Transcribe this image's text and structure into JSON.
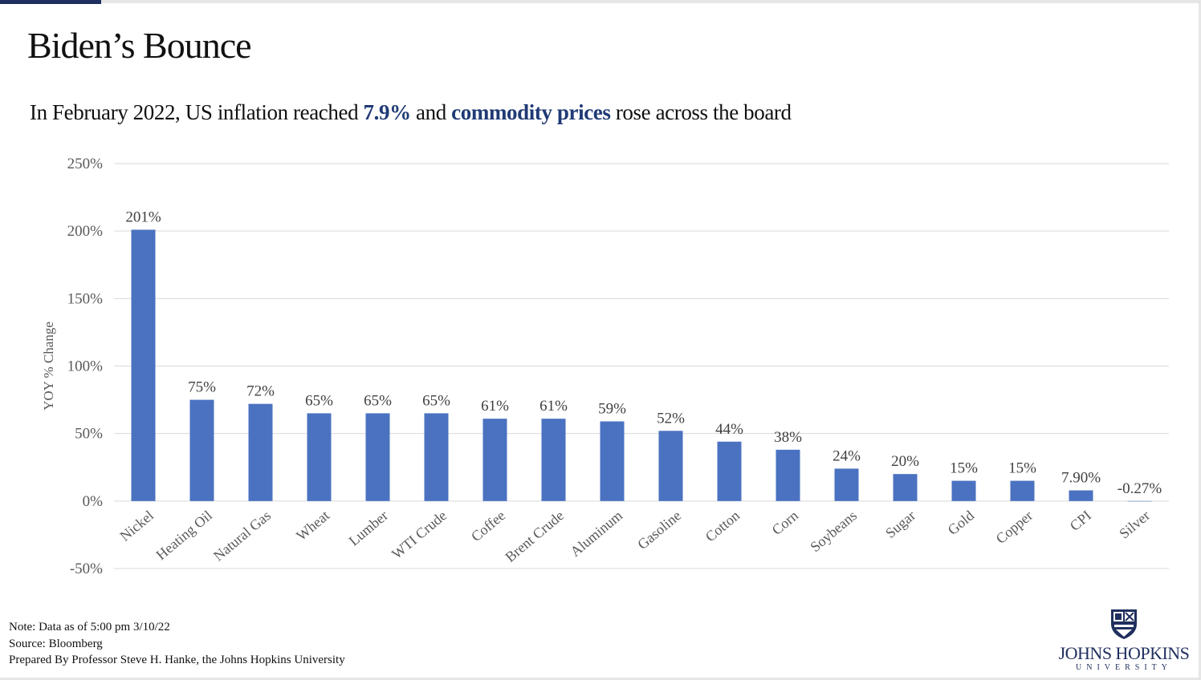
{
  "page": {
    "title": "Biden’s Bounce",
    "subtitle": {
      "part1": "In February 2022,  US inflation reached ",
      "highlight1": "7.9%",
      "part2": " and ",
      "highlight2": "commodity prices",
      "part3": " rose across the board"
    }
  },
  "notes": {
    "line1": "Note: Data as of  5:00 pm 3/10/22",
    "line2": "Source: Bloomberg",
    "line3": "Prepared By Professor Steve H. Hanke, the Johns Hopkins University"
  },
  "logo": {
    "name": "JOHNS HOPKINS",
    "sub": "UNIVERSITY"
  },
  "colors": {
    "bar": "#4a72c1",
    "accent": "#1f3a75",
    "grid": "#d9d9d9"
  },
  "chart_data": {
    "type": "bar",
    "title": "",
    "xlabel": "",
    "ylabel": "YOY % Change",
    "ylim": [
      -50,
      250
    ],
    "yticks": [
      250,
      200,
      150,
      100,
      50,
      0,
      -50
    ],
    "ytick_labels": [
      "250%",
      "200%",
      "150%",
      "100%",
      "50%",
      "0%",
      "-50%"
    ],
    "grid": true,
    "categories": [
      "Nickel",
      "Heating Oil",
      "Natural Gas",
      "Wheat",
      "Lumber",
      "WTI Crude",
      "Coffee",
      "Brent Crude",
      "Aluminum",
      "Gasoline",
      "Cotton",
      "Corn",
      "Soybeans",
      "Sugar",
      "Gold",
      "Copper",
      "CPI",
      "Silver"
    ],
    "values": [
      201,
      75,
      72,
      65,
      65,
      65,
      61,
      61,
      59,
      52,
      44,
      38,
      24,
      20,
      15,
      15,
      7.9,
      -0.27
    ],
    "data_labels": [
      "201%",
      "75%",
      "72%",
      "65%",
      "65%",
      "65%",
      "61%",
      "61%",
      "59%",
      "52%",
      "44%",
      "38%",
      "24%",
      "20%",
      "15%",
      "15%",
      "7.90%",
      "-0.27%"
    ]
  }
}
